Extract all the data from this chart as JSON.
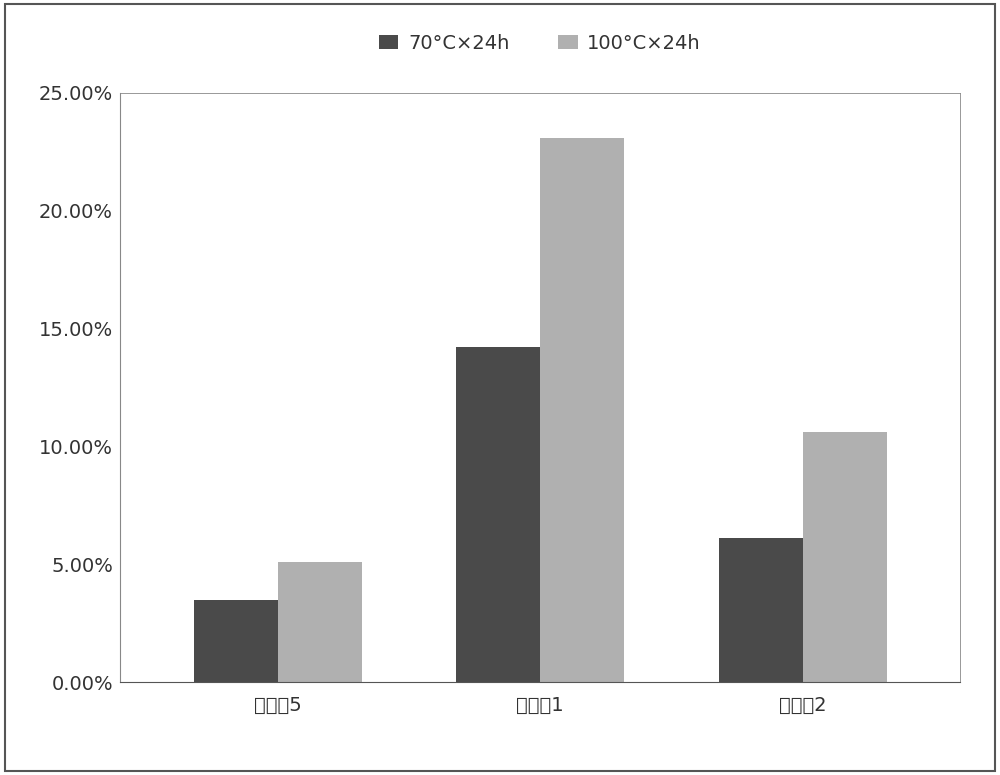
{
  "categories": [
    "实施例5",
    "对比例1",
    "对比例2"
  ],
  "series": [
    {
      "label": "70°C×24h",
      "values": [
        3.5,
        14.2,
        6.1
      ],
      "color": "#4a4a4a"
    },
    {
      "label": "100°C×24h",
      "values": [
        5.1,
        23.1,
        10.6
      ],
      "color": "#b0b0b0"
    }
  ],
  "ylim": [
    0,
    25
  ],
  "yticks": [
    0,
    5,
    10,
    15,
    20,
    25
  ],
  "ytick_labels": [
    "0.00%",
    "5.00%",
    "10.00%",
    "15.00%",
    "20.00%",
    "25.00%"
  ],
  "background_color": "#ffffff",
  "bar_width": 0.32,
  "legend_fontsize": 14,
  "tick_fontsize": 14,
  "figure_facecolor": "#ffffff",
  "border_color": "#888888",
  "spine_color": "#888888"
}
